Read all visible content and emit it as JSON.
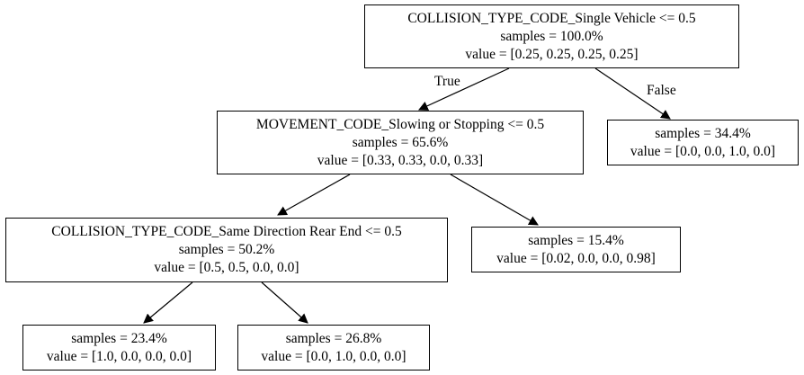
{
  "tree": {
    "root": {
      "condition": "COLLISION_TYPE_CODE_Single Vehicle  <= 0.5",
      "samples": "samples = 100.0%",
      "value": "value = [0.25, 0.25, 0.25, 0.25]"
    },
    "movement": {
      "condition": "MOVEMENT_CODE_Slowing or Stopping <= 0.5",
      "samples": "samples = 65.6%",
      "value": "value = [0.33, 0.33, 0.0, 0.33]"
    },
    "leaf_false": {
      "samples": "samples = 34.4%",
      "value": "value = [0.0, 0.0, 1.0, 0.0]"
    },
    "rear_end": {
      "condition": "COLLISION_TYPE_CODE_Same Direction Rear End <= 0.5",
      "samples": "samples = 50.2%",
      "value": "value = [0.5, 0.5, 0.0, 0.0]"
    },
    "leaf_15": {
      "samples": "samples = 15.4%",
      "value": "value = [0.02, 0.0, 0.0, 0.98]"
    },
    "leaf_23": {
      "samples": "samples = 23.4%",
      "value": "value = [1.0, 0.0, 0.0, 0.0]"
    },
    "leaf_26": {
      "samples": "samples = 26.8%",
      "value": "value = [0.0, 1.0, 0.0, 0.0]"
    }
  },
  "edges": {
    "true_label": "True",
    "false_label": "False"
  }
}
